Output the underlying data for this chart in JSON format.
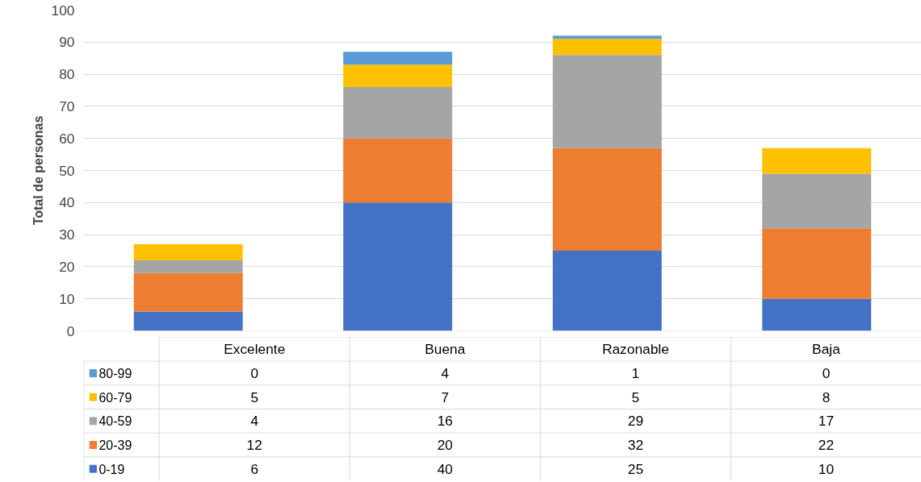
{
  "chart_data": {
    "type": "bar",
    "stacked": true,
    "ylabel": "Total de personas",
    "categories": [
      "Excelente",
      "Buena",
      "Razonable",
      "Baja"
    ],
    "series": [
      {
        "name": "0-19",
        "color": "#4472c4",
        "values": [
          6,
          40,
          25,
          10
        ]
      },
      {
        "name": "20-39",
        "color": "#ed7d31",
        "values": [
          12,
          20,
          32,
          22
        ]
      },
      {
        "name": "40-59",
        "color": "#a5a5a5",
        "values": [
          4,
          16,
          29,
          17
        ]
      },
      {
        "name": "60-79",
        "color": "#ffc000",
        "values": [
          5,
          7,
          5,
          8
        ]
      },
      {
        "name": "80-99",
        "color": "#5b9bd5",
        "values": [
          0,
          4,
          1,
          0
        ]
      }
    ],
    "ylim": [
      0,
      100
    ],
    "yticks": [
      0,
      10,
      20,
      30,
      40,
      50,
      60,
      70,
      80,
      90,
      100
    ],
    "grid": "y",
    "data_labels": true,
    "legend": "bottom left"
  }
}
